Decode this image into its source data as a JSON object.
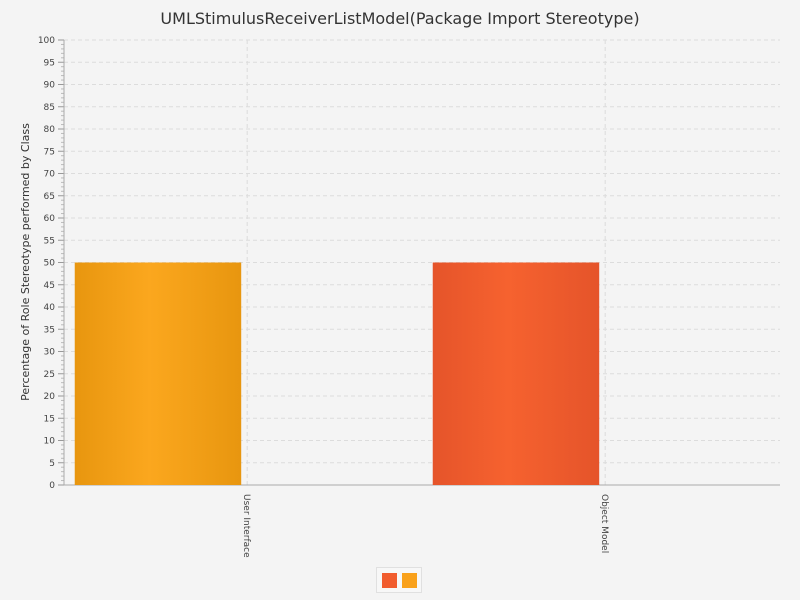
{
  "chart_data": {
    "type": "bar",
    "title": "UMLStimulusReceiverListModel(Package Import Stereotype)",
    "xlabel": "",
    "ylabel": "Percentage of Role Stereotype performed by Class",
    "ylim": [
      0,
      100
    ],
    "ytick_step": 5,
    "grid": true,
    "categories": [
      "User Interface",
      "Object Model"
    ],
    "values": [
      50,
      50
    ],
    "bar_colors": [
      "#f9a11b",
      "#f15c2e"
    ],
    "legend": {
      "placement": "bottom-center",
      "swatch_colors": [
        "#f15c2e",
        "#f9a11b"
      ]
    }
  }
}
